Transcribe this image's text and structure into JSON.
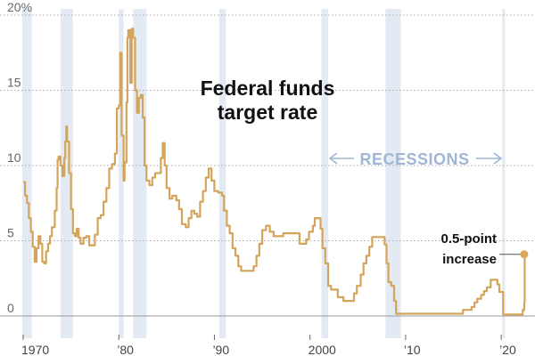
{
  "chart_data": {
    "type": "line",
    "title": "Federal funds target rate",
    "title_lines": [
      "Federal funds",
      "target rate"
    ],
    "xlabel": "",
    "ylabel": "",
    "xlim": [
      1970,
      2022.6
    ],
    "ylim": [
      0,
      20
    ],
    "y_ticks": [
      0,
      5,
      10,
      15,
      20
    ],
    "y_tick_labels": [
      "0",
      "5",
      "10",
      "15",
      "20%"
    ],
    "x_ticks": [
      1970,
      1980,
      1990,
      2000,
      2010,
      2020
    ],
    "x_tick_labels": [
      "1970",
      "’80",
      "’90",
      "2000",
      "’10",
      "’20"
    ],
    "grid": "horizontal dotted",
    "recessions_label": "RECESSIONS",
    "recessions": [
      [
        1969.9,
        1970.9
      ],
      [
        1973.9,
        1975.2
      ],
      [
        1980.0,
        1980.5
      ],
      [
        1981.5,
        1982.9
      ],
      [
        1990.5,
        1991.2
      ],
      [
        2001.2,
        2001.9
      ],
      [
        2007.9,
        2009.5
      ],
      [
        2020.1,
        2020.4
      ]
    ],
    "annotation": {
      "lines": [
        "0.5-point",
        "increase"
      ],
      "x": 2022.4,
      "y": 4.1
    },
    "colors": {
      "line": "#d4a45a",
      "recession": "#e3eaf4",
      "grid": "#aaaaaa",
      "annotation_dot": "#d9a85a"
    },
    "series": [
      {
        "values": [
          [
            1970.0,
            8.9
          ],
          [
            1970.2,
            8.0
          ],
          [
            1970.4,
            7.5
          ],
          [
            1970.6,
            6.5
          ],
          [
            1970.8,
            5.6
          ],
          [
            1971.0,
            4.6
          ],
          [
            1971.2,
            3.6
          ],
          [
            1971.4,
            4.5
          ],
          [
            1971.6,
            5.3
          ],
          [
            1971.8,
            4.8
          ],
          [
            1972.0,
            3.6
          ],
          [
            1972.2,
            3.5
          ],
          [
            1972.4,
            4.3
          ],
          [
            1972.6,
            4.8
          ],
          [
            1972.8,
            5.3
          ],
          [
            1973.0,
            5.9
          ],
          [
            1973.3,
            7.0
          ],
          [
            1973.5,
            8.5
          ],
          [
            1973.6,
            10.4
          ],
          [
            1973.7,
            10.6
          ],
          [
            1973.9,
            10.0
          ],
          [
            1974.1,
            9.3
          ],
          [
            1974.3,
            10.5
          ],
          [
            1974.4,
            11.6
          ],
          [
            1974.5,
            12.6
          ],
          [
            1974.6,
            11.6
          ],
          [
            1974.8,
            9.5
          ],
          [
            1975.0,
            7.1
          ],
          [
            1975.2,
            5.5
          ],
          [
            1975.4,
            5.3
          ],
          [
            1975.6,
            5.8
          ],
          [
            1975.8,
            5.2
          ],
          [
            1976.0,
            4.8
          ],
          [
            1976.3,
            5.2
          ],
          [
            1976.6,
            5.3
          ],
          [
            1976.9,
            4.7
          ],
          [
            1977.2,
            4.7
          ],
          [
            1977.5,
            5.4
          ],
          [
            1977.8,
            6.5
          ],
          [
            1978.1,
            6.7
          ],
          [
            1978.4,
            7.6
          ],
          [
            1978.7,
            8.5
          ],
          [
            1979.0,
            9.8
          ],
          [
            1979.3,
            10.1
          ],
          [
            1979.6,
            10.8
          ],
          [
            1979.8,
            13.8
          ],
          [
            1980.0,
            14.0
          ],
          [
            1980.15,
            17.5
          ],
          [
            1980.3,
            12.0
          ],
          [
            1980.5,
            9.0
          ],
          [
            1980.6,
            10.2
          ],
          [
            1980.8,
            14.2
          ],
          [
            1980.9,
            18.5
          ],
          [
            1981.0,
            19.0
          ],
          [
            1981.2,
            15.5
          ],
          [
            1981.35,
            19.1
          ],
          [
            1981.5,
            18.5
          ],
          [
            1981.7,
            15.0
          ],
          [
            1981.9,
            13.5
          ],
          [
            1982.1,
            14.5
          ],
          [
            1982.3,
            14.7
          ],
          [
            1982.5,
            13.2
          ],
          [
            1982.7,
            10.0
          ],
          [
            1982.9,
            9.0
          ],
          [
            1983.2,
            8.7
          ],
          [
            1983.5,
            9.2
          ],
          [
            1983.8,
            9.5
          ],
          [
            1984.0,
            9.5
          ],
          [
            1984.4,
            10.5
          ],
          [
            1984.6,
            11.5
          ],
          [
            1984.8,
            10.0
          ],
          [
            1985.0,
            8.5
          ],
          [
            1985.3,
            7.8
          ],
          [
            1985.6,
            8.0
          ],
          [
            1986.0,
            7.7
          ],
          [
            1986.3,
            7.1
          ],
          [
            1986.6,
            6.1
          ],
          [
            1987.0,
            5.9
          ],
          [
            1987.3,
            6.5
          ],
          [
            1987.6,
            7.0
          ],
          [
            1987.9,
            6.8
          ],
          [
            1988.2,
            6.6
          ],
          [
            1988.5,
            7.6
          ],
          [
            1988.8,
            8.3
          ],
          [
            1989.1,
            9.2
          ],
          [
            1989.4,
            9.8
          ],
          [
            1989.7,
            9.0
          ],
          [
            1990.0,
            8.3
          ],
          [
            1990.4,
            8.2
          ],
          [
            1990.8,
            8.0
          ],
          [
            1991.0,
            7.0
          ],
          [
            1991.3,
            6.0
          ],
          [
            1991.6,
            5.5
          ],
          [
            1991.9,
            4.5
          ],
          [
            1992.2,
            4.0
          ],
          [
            1992.5,
            3.3
          ],
          [
            1992.8,
            3.0
          ],
          [
            1993.2,
            3.0
          ],
          [
            1993.8,
            3.0
          ],
          [
            1994.1,
            3.3
          ],
          [
            1994.4,
            4.0
          ],
          [
            1994.7,
            4.8
          ],
          [
            1995.0,
            5.7
          ],
          [
            1995.4,
            6.0
          ],
          [
            1995.8,
            5.6
          ],
          [
            1996.2,
            5.3
          ],
          [
            1996.8,
            5.3
          ],
          [
            1997.2,
            5.5
          ],
          [
            1997.8,
            5.5
          ],
          [
            1998.5,
            5.5
          ],
          [
            1998.9,
            4.8
          ],
          [
            1999.3,
            4.8
          ],
          [
            1999.6,
            5.1
          ],
          [
            1999.9,
            5.6
          ],
          [
            2000.3,
            6.0
          ],
          [
            2000.5,
            6.5
          ],
          [
            2000.9,
            6.5
          ],
          [
            2001.1,
            5.8
          ],
          [
            2001.3,
            4.5
          ],
          [
            2001.6,
            3.5
          ],
          [
            2001.9,
            2.0
          ],
          [
            2002.2,
            1.75
          ],
          [
            2002.6,
            1.75
          ],
          [
            2002.9,
            1.25
          ],
          [
            2003.5,
            1.0
          ],
          [
            2004.3,
            1.0
          ],
          [
            2004.6,
            1.5
          ],
          [
            2004.9,
            2.0
          ],
          [
            2005.3,
            2.75
          ],
          [
            2005.6,
            3.5
          ],
          [
            2005.9,
            4.0
          ],
          [
            2006.2,
            4.6
          ],
          [
            2006.5,
            5.25
          ],
          [
            2007.2,
            5.25
          ],
          [
            2007.6,
            5.25
          ],
          [
            2007.8,
            4.75
          ],
          [
            2008.0,
            3.5
          ],
          [
            2008.2,
            2.25
          ],
          [
            2008.5,
            2.0
          ],
          [
            2008.8,
            1.0
          ],
          [
            2009.0,
            0.15
          ],
          [
            2010.0,
            0.15
          ],
          [
            2012.0,
            0.15
          ],
          [
            2014.0,
            0.15
          ],
          [
            2015.9,
            0.15
          ],
          [
            2016.0,
            0.4
          ],
          [
            2016.9,
            0.6
          ],
          [
            2017.2,
            0.9
          ],
          [
            2017.5,
            1.15
          ],
          [
            2017.9,
            1.4
          ],
          [
            2018.2,
            1.65
          ],
          [
            2018.5,
            1.9
          ],
          [
            2018.9,
            2.4
          ],
          [
            2019.4,
            2.4
          ],
          [
            2019.6,
            2.1
          ],
          [
            2019.8,
            1.6
          ],
          [
            2020.1,
            1.6
          ],
          [
            2020.2,
            0.1
          ],
          [
            2021.0,
            0.1
          ],
          [
            2022.1,
            0.1
          ],
          [
            2022.25,
            0.4
          ],
          [
            2022.4,
            0.85
          ],
          [
            2022.45,
            4.1
          ]
        ]
      }
    ]
  }
}
